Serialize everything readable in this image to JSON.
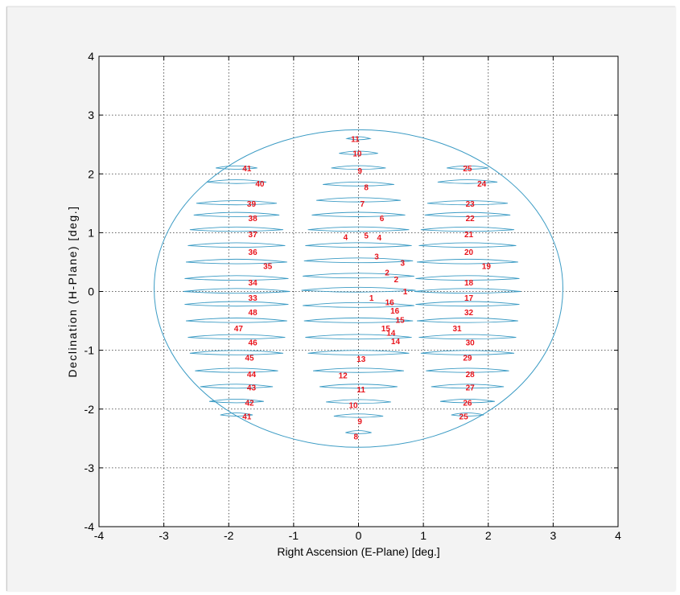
{
  "chart_data": {
    "type": "line",
    "title": "",
    "xlabel": "Right Ascension (E-Plane) [deg.]",
    "ylabel": "Declination (H-Plane) [deg.]",
    "xlim": [
      -4,
      4
    ],
    "ylim": [
      -4,
      4
    ],
    "xticks": [
      -4,
      -3,
      -2,
      -1,
      0,
      1,
      2,
      3,
      4
    ],
    "yticks": [
      -4,
      -3,
      -2,
      -1,
      0,
      1,
      2,
      3,
      4
    ],
    "grid": true,
    "grid_style": "dotted",
    "line_color": "#3b9bc4",
    "label_color": "#e8141c",
    "coverage_ellipse": {
      "center": [
        0,
        0.05
      ],
      "semi_axis_x": 3.15,
      "semi_axis_y": 2.7
    },
    "beam_contours": [
      {
        "column": "left",
        "x_center": -1.88,
        "y": 2.1,
        "half_width": 0.32
      },
      {
        "column": "left",
        "x_center": -1.88,
        "y": 1.86,
        "half_width": 0.46
      },
      {
        "column": "left",
        "x_center": -1.88,
        "y": 1.5,
        "half_width": 0.62
      },
      {
        "column": "left",
        "x_center": -1.88,
        "y": 1.3,
        "half_width": 0.66
      },
      {
        "column": "left",
        "x_center": -1.88,
        "y": 1.05,
        "half_width": 0.72
      },
      {
        "column": "left",
        "x_center": -1.88,
        "y": 0.78,
        "half_width": 0.75
      },
      {
        "column": "left",
        "x_center": -1.88,
        "y": 0.5,
        "half_width": 0.78
      },
      {
        "column": "left",
        "x_center": -1.88,
        "y": 0.22,
        "half_width": 0.8
      },
      {
        "column": "left",
        "x_center": -1.88,
        "y": 0.0,
        "half_width": 0.82
      },
      {
        "column": "left",
        "x_center": -1.88,
        "y": -0.22,
        "half_width": 0.8
      },
      {
        "column": "left",
        "x_center": -1.88,
        "y": -0.5,
        "half_width": 0.78
      },
      {
        "column": "left",
        "x_center": -1.88,
        "y": -0.78,
        "half_width": 0.75
      },
      {
        "column": "left",
        "x_center": -1.88,
        "y": -1.05,
        "half_width": 0.72
      },
      {
        "column": "left",
        "x_center": -1.88,
        "y": -1.35,
        "half_width": 0.64
      },
      {
        "column": "left",
        "x_center": -1.88,
        "y": -1.62,
        "half_width": 0.56
      },
      {
        "column": "left",
        "x_center": -1.88,
        "y": -1.87,
        "half_width": 0.42
      },
      {
        "column": "left",
        "x_center": -1.88,
        "y": -2.1,
        "half_width": 0.25
      },
      {
        "column": "center",
        "x_center": 0.0,
        "y": 2.6,
        "half_width": 0.18
      },
      {
        "column": "center",
        "x_center": 0.0,
        "y": 2.35,
        "half_width": 0.3
      },
      {
        "column": "center",
        "x_center": 0.0,
        "y": 2.1,
        "half_width": 0.42
      },
      {
        "column": "center",
        "x_center": 0.0,
        "y": 1.82,
        "half_width": 0.55
      },
      {
        "column": "center",
        "x_center": 0.0,
        "y": 1.55,
        "half_width": 0.65
      },
      {
        "column": "center",
        "x_center": 0.0,
        "y": 1.3,
        "half_width": 0.72
      },
      {
        "column": "center",
        "x_center": 0.0,
        "y": 1.05,
        "half_width": 0.78
      },
      {
        "column": "center",
        "x_center": 0.0,
        "y": 0.78,
        "half_width": 0.82
      },
      {
        "column": "center",
        "x_center": 0.0,
        "y": 0.52,
        "half_width": 0.84
      },
      {
        "column": "center",
        "x_center": 0.0,
        "y": 0.26,
        "half_width": 0.86
      },
      {
        "column": "center",
        "x_center": 0.0,
        "y": 0.02,
        "half_width": 0.88
      },
      {
        "column": "center",
        "x_center": 0.0,
        "y": -0.24,
        "half_width": 0.86
      },
      {
        "column": "center",
        "x_center": 0.0,
        "y": -0.5,
        "half_width": 0.84
      },
      {
        "column": "center",
        "x_center": 0.0,
        "y": -0.78,
        "half_width": 0.82
      },
      {
        "column": "center",
        "x_center": 0.0,
        "y": -1.05,
        "half_width": 0.78
      },
      {
        "column": "center",
        "x_center": 0.0,
        "y": -1.35,
        "half_width": 0.7
      },
      {
        "column": "center",
        "x_center": 0.0,
        "y": -1.62,
        "half_width": 0.6
      },
      {
        "column": "center",
        "x_center": 0.0,
        "y": -1.88,
        "half_width": 0.5
      },
      {
        "column": "center",
        "x_center": 0.0,
        "y": -2.12,
        "half_width": 0.38
      },
      {
        "column": "center",
        "x_center": 0.0,
        "y": -2.4,
        "half_width": 0.2
      },
      {
        "column": "right",
        "x_center": 1.68,
        "y": 2.1,
        "half_width": 0.32
      },
      {
        "column": "right",
        "x_center": 1.68,
        "y": 1.86,
        "half_width": 0.46
      },
      {
        "column": "right",
        "x_center": 1.68,
        "y": 1.5,
        "half_width": 0.62
      },
      {
        "column": "right",
        "x_center": 1.68,
        "y": 1.3,
        "half_width": 0.66
      },
      {
        "column": "right",
        "x_center": 1.68,
        "y": 1.05,
        "half_width": 0.72
      },
      {
        "column": "right",
        "x_center": 1.68,
        "y": 0.78,
        "half_width": 0.75
      },
      {
        "column": "right",
        "x_center": 1.68,
        "y": 0.5,
        "half_width": 0.78
      },
      {
        "column": "right",
        "x_center": 1.68,
        "y": 0.22,
        "half_width": 0.8
      },
      {
        "column": "right",
        "x_center": 1.68,
        "y": 0.0,
        "half_width": 0.82
      },
      {
        "column": "right",
        "x_center": 1.68,
        "y": -0.22,
        "half_width": 0.8
      },
      {
        "column": "right",
        "x_center": 1.68,
        "y": -0.5,
        "half_width": 0.78
      },
      {
        "column": "right",
        "x_center": 1.68,
        "y": -0.78,
        "half_width": 0.75
      },
      {
        "column": "right",
        "x_center": 1.68,
        "y": -1.05,
        "half_width": 0.72
      },
      {
        "column": "right",
        "x_center": 1.68,
        "y": -1.35,
        "half_width": 0.64
      },
      {
        "column": "right",
        "x_center": 1.68,
        "y": -1.62,
        "half_width": 0.56
      },
      {
        "column": "right",
        "x_center": 1.68,
        "y": -1.87,
        "half_width": 0.42
      },
      {
        "column": "right",
        "x_center": 1.68,
        "y": -2.1,
        "half_width": 0.25
      }
    ],
    "annotations": [
      {
        "text": "41",
        "x": -1.72,
        "y": 2.1
      },
      {
        "text": "40",
        "x": -1.52,
        "y": 1.84
      },
      {
        "text": "39",
        "x": -1.65,
        "y": 1.5
      },
      {
        "text": "38",
        "x": -1.63,
        "y": 1.25
      },
      {
        "text": "37",
        "x": -1.63,
        "y": 0.98
      },
      {
        "text": "36",
        "x": -1.63,
        "y": 0.68
      },
      {
        "text": "35",
        "x": -1.4,
        "y": 0.44
      },
      {
        "text": "34",
        "x": -1.63,
        "y": 0.16
      },
      {
        "text": "33",
        "x": -1.63,
        "y": -0.1
      },
      {
        "text": "48",
        "x": -1.63,
        "y": -0.35
      },
      {
        "text": "47",
        "x": -1.85,
        "y": -0.62
      },
      {
        "text": "46",
        "x": -1.63,
        "y": -0.86
      },
      {
        "text": "45",
        "x": -1.68,
        "y": -1.12
      },
      {
        "text": "44",
        "x": -1.65,
        "y": -1.4
      },
      {
        "text": "43",
        "x": -1.65,
        "y": -1.63
      },
      {
        "text": "42",
        "x": -1.68,
        "y": -1.89
      },
      {
        "text": "41",
        "x": -1.72,
        "y": -2.12
      },
      {
        "text": "11",
        "x": -0.05,
        "y": 2.6
      },
      {
        "text": "10",
        "x": -0.02,
        "y": 2.35
      },
      {
        "text": "9",
        "x": 0.02,
        "y": 2.06
      },
      {
        "text": "8",
        "x": 0.12,
        "y": 1.78
      },
      {
        "text": "7",
        "x": 0.06,
        "y": 1.5
      },
      {
        "text": "6",
        "x": 0.36,
        "y": 1.25
      },
      {
        "text": "4",
        "x": -0.2,
        "y": 0.93
      },
      {
        "text": "5",
        "x": 0.12,
        "y": 0.96
      },
      {
        "text": "4",
        "x": 0.32,
        "y": 0.92
      },
      {
        "text": "3",
        "x": 0.28,
        "y": 0.6
      },
      {
        "text": "3",
        "x": 0.68,
        "y": 0.49
      },
      {
        "text": "2",
        "x": 0.44,
        "y": 0.33
      },
      {
        "text": "2",
        "x": 0.58,
        "y": 0.21
      },
      {
        "text": "1",
        "x": 0.72,
        "y": 0.01
      },
      {
        "text": "1",
        "x": 0.2,
        "y": -0.1
      },
      {
        "text": "16",
        "x": 0.48,
        "y": -0.18
      },
      {
        "text": "16",
        "x": 0.56,
        "y": -0.32
      },
      {
        "text": "15",
        "x": 0.64,
        "y": -0.48
      },
      {
        "text": "15",
        "x": 0.42,
        "y": -0.62
      },
      {
        "text": "14",
        "x": 0.5,
        "y": -0.7
      },
      {
        "text": "14",
        "x": 0.57,
        "y": -0.84
      },
      {
        "text": "13",
        "x": 0.04,
        "y": -1.14
      },
      {
        "text": "12",
        "x": -0.24,
        "y": -1.42
      },
      {
        "text": "11",
        "x": 0.04,
        "y": -1.66
      },
      {
        "text": "10",
        "x": -0.08,
        "y": -1.93
      },
      {
        "text": "9",
        "x": 0.02,
        "y": -2.2
      },
      {
        "text": "8",
        "x": -0.04,
        "y": -2.46
      },
      {
        "text": "25",
        "x": 1.68,
        "y": 2.1
      },
      {
        "text": "24",
        "x": 1.9,
        "y": 1.84
      },
      {
        "text": "23",
        "x": 1.72,
        "y": 1.5
      },
      {
        "text": "22",
        "x": 1.72,
        "y": 1.25
      },
      {
        "text": "21",
        "x": 1.7,
        "y": 0.98
      },
      {
        "text": "20",
        "x": 1.7,
        "y": 0.68
      },
      {
        "text": "19",
        "x": 1.97,
        "y": 0.44
      },
      {
        "text": "18",
        "x": 1.7,
        "y": 0.16
      },
      {
        "text": "17",
        "x": 1.7,
        "y": -0.1
      },
      {
        "text": "32",
        "x": 1.7,
        "y": -0.35
      },
      {
        "text": "31",
        "x": 1.52,
        "y": -0.62
      },
      {
        "text": "30",
        "x": 1.72,
        "y": -0.86
      },
      {
        "text": "29",
        "x": 1.68,
        "y": -1.12
      },
      {
        "text": "28",
        "x": 1.72,
        "y": -1.4
      },
      {
        "text": "27",
        "x": 1.72,
        "y": -1.63
      },
      {
        "text": "26",
        "x": 1.68,
        "y": -1.89
      },
      {
        "text": "25",
        "x": 1.62,
        "y": -2.12
      }
    ]
  }
}
